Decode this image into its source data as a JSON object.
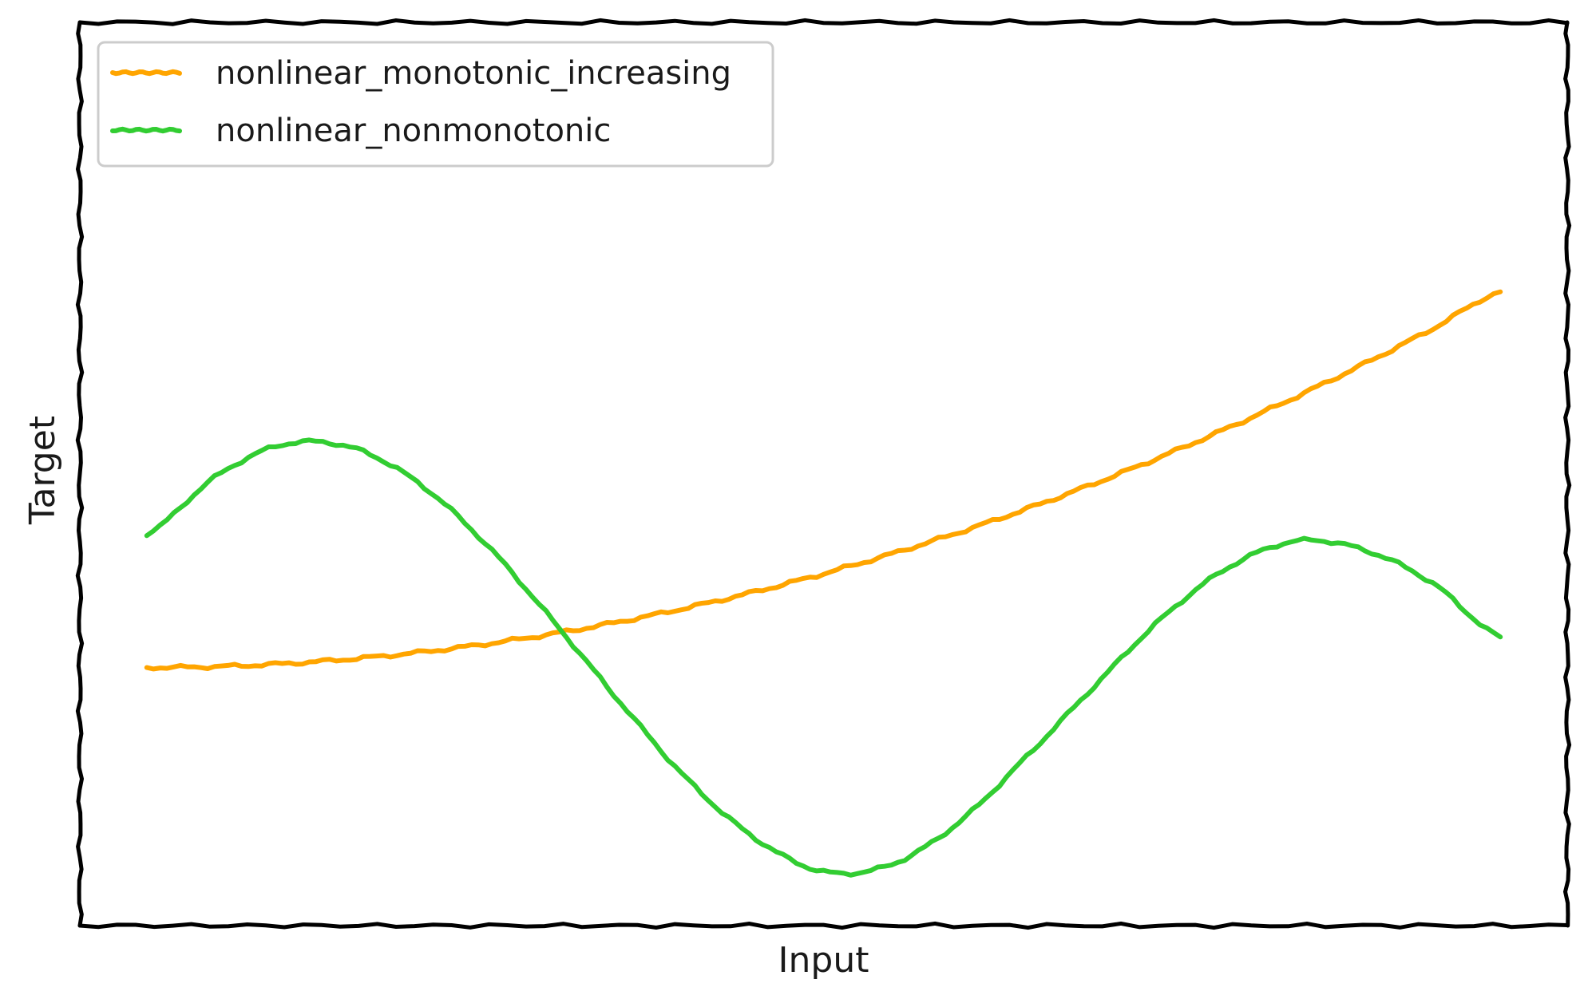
{
  "chart_data": {
    "type": "line",
    "title": "",
    "xlabel": "Input",
    "ylabel": "Target",
    "x_ticks": false,
    "y_ticks": false,
    "grid": false,
    "legend_position": "top-left",
    "xlim": [
      0,
      1
    ],
    "ylim": [
      -1.1,
      2.75
    ],
    "x": [
      0.0,
      0.05,
      0.1,
      0.15,
      0.2,
      0.25,
      0.3,
      0.35,
      0.4,
      0.45,
      0.5,
      0.55,
      0.6,
      0.65,
      0.7,
      0.75,
      0.8,
      0.85,
      0.9,
      0.95,
      1.0
    ],
    "series": [
      {
        "name": "nonlinear_monotonic_increasing",
        "color": "#FFA500",
        "values": [
          0.0,
          0.004,
          0.016,
          0.036,
          0.064,
          0.1,
          0.144,
          0.196,
          0.256,
          0.324,
          0.4,
          0.484,
          0.576,
          0.676,
          0.784,
          0.9,
          1.024,
          1.156,
          1.296,
          1.444,
          1.6
        ]
      },
      {
        "name": "nonlinear_nonmonotonic",
        "color": "#32CD32",
        "values": [
          0.57,
          0.81,
          0.95,
          0.94,
          0.79,
          0.53,
          0.2,
          -0.15,
          -0.48,
          -0.73,
          -0.87,
          -0.84,
          -0.66,
          -0.38,
          -0.08,
          0.21,
          0.43,
          0.54,
          0.5,
          0.36,
          0.13
        ]
      }
    ]
  }
}
